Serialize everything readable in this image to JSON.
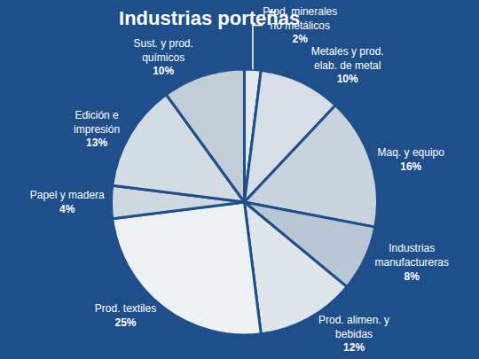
{
  "chart_data": {
    "type": "pie",
    "title": "Industrias porteñas",
    "categories": [
      "Prod. minerales no metálicos",
      "Metales y prod. elab. de metal",
      "Maq. y equipo",
      "Industrias manufactureras",
      "Prod. alimen. y bebidas",
      "Prod. textiles",
      "Papel y madera",
      "Edición e impresión",
      "Sust. y prod. químicos"
    ],
    "values": [
      2,
      10,
      16,
      8,
      12,
      25,
      4,
      13,
      10
    ],
    "value_labels": [
      "2%",
      "10%",
      "16%",
      "8%",
      "12%",
      "25%",
      "4%",
      "13%",
      "10%"
    ],
    "colors": [
      "#e4e9ee",
      "#d7dee6",
      "#c9d3dd",
      "#b9c6d3",
      "#dfe5eb",
      "#eef1f4",
      "#cfd8e1",
      "#d3dbe3",
      "#c2cdd8"
    ],
    "data_labels": true
  }
}
